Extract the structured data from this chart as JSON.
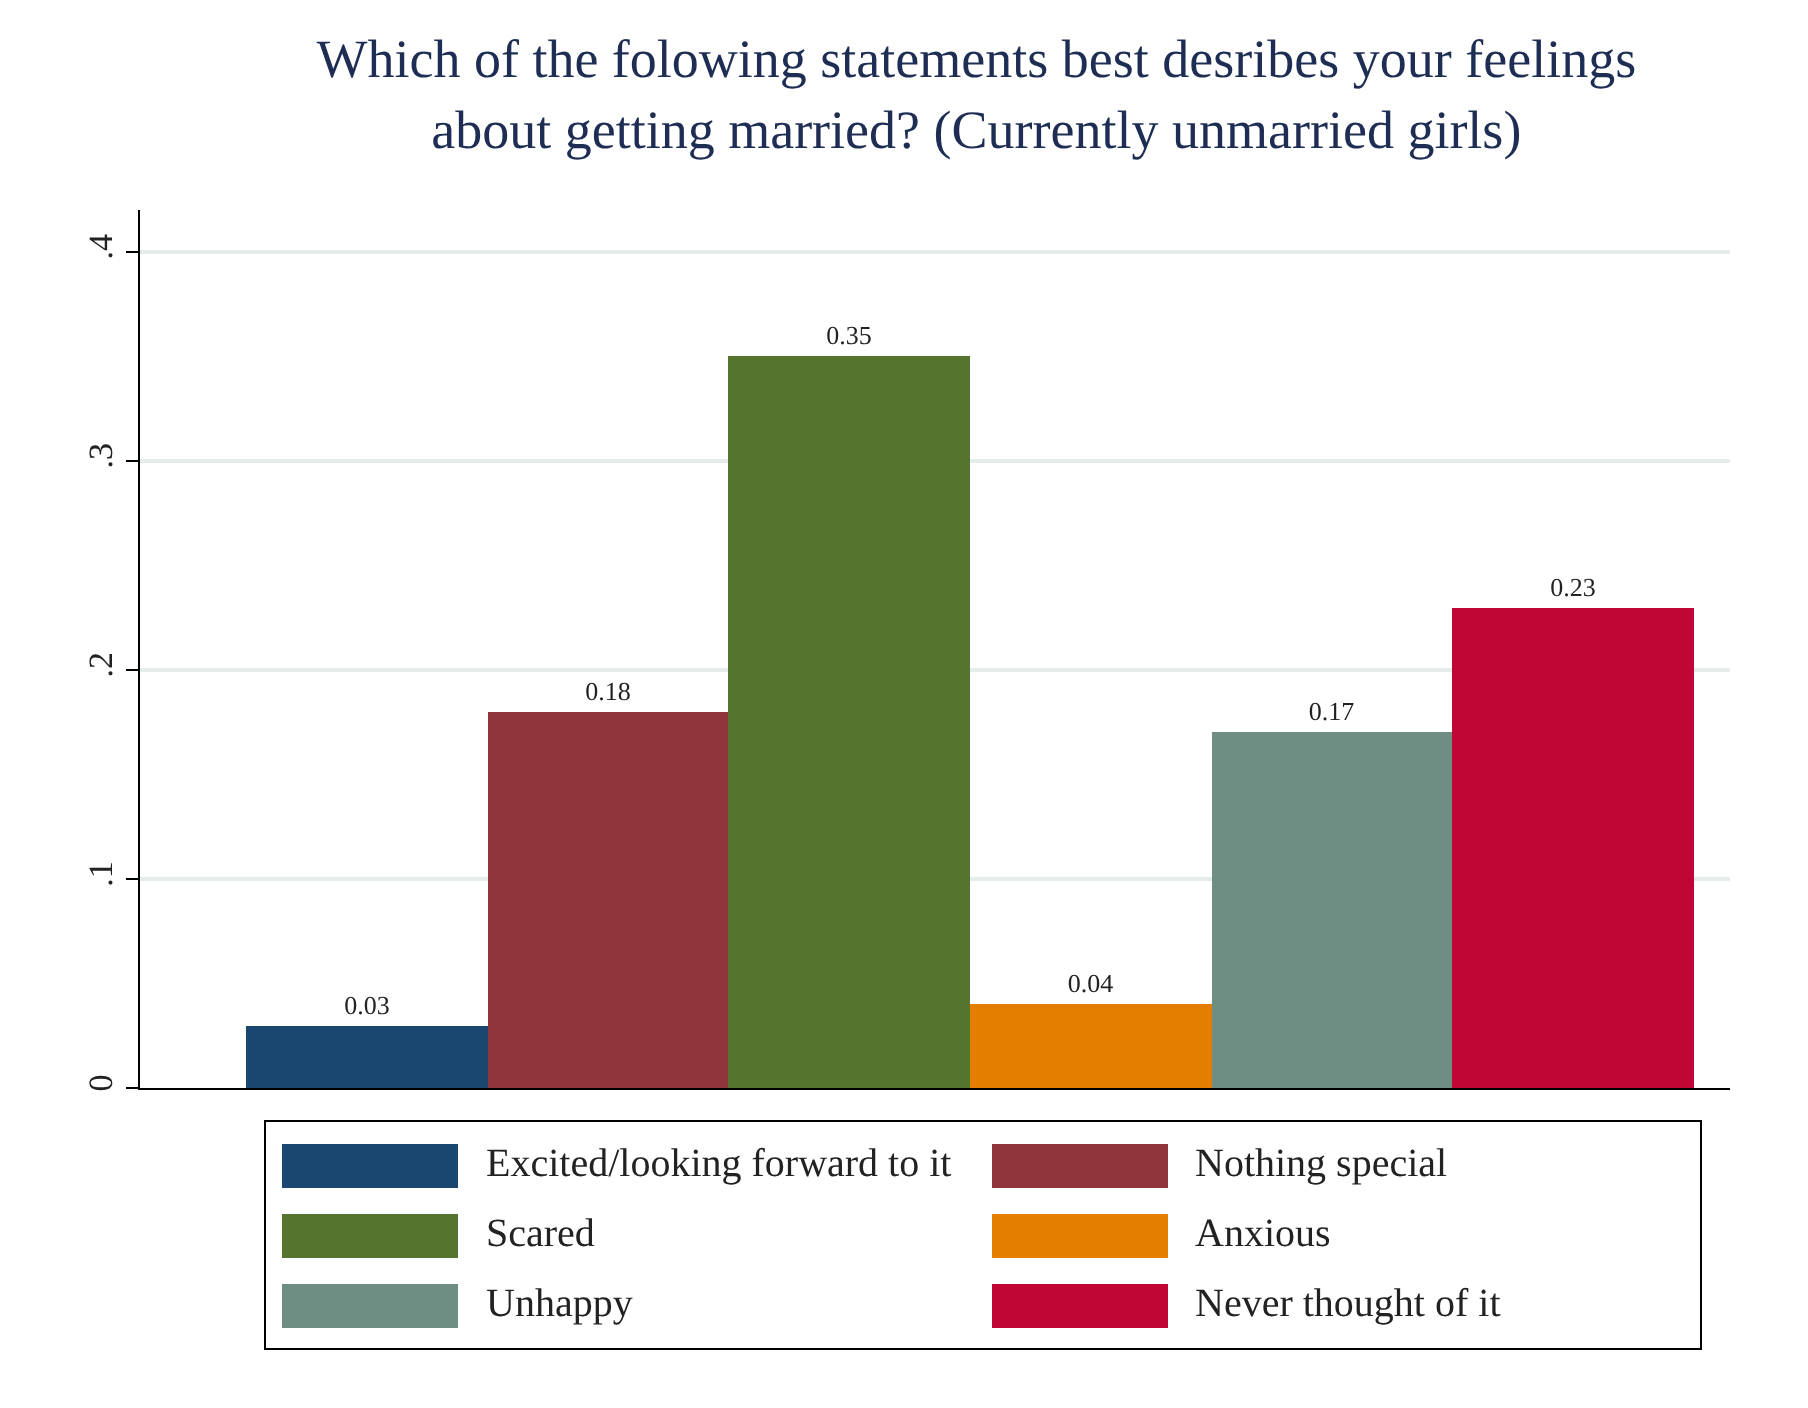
{
  "chart_data": {
    "type": "bar",
    "title": "Which of the folowing statements best desribes your feelings\nabout getting married? (Currently unmarried girls)",
    "categories": [
      null,
      null,
      null,
      null,
      null,
      null
    ],
    "series": [
      {
        "name": "Excited/looking forward to it",
        "color": "#1a476f",
        "values": [
          0.03,
          null,
          null,
          null,
          null,
          null
        ]
      },
      {
        "name": "Nothing special",
        "color": "#90353b",
        "values": [
          null,
          0.18,
          null,
          null,
          null,
          null
        ]
      },
      {
        "name": "Scared",
        "color": "#55752f",
        "values": [
          null,
          null,
          0.35,
          null,
          null,
          null
        ]
      },
      {
        "name": "Anxious",
        "color": "#e37e00",
        "values": [
          null,
          null,
          null,
          0.04,
          null,
          null
        ]
      },
      {
        "name": "Unhappy",
        "color": "#6e8e84",
        "values": [
          null,
          null,
          null,
          null,
          0.17,
          null
        ]
      },
      {
        "name": "Never thought of it",
        "color": "#c10534",
        "values": [
          null,
          null,
          null,
          null,
          null,
          0.23
        ]
      }
    ],
    "ylim": [
      0,
      0.42
    ],
    "yticks": [
      0,
      {
        "value": 0.1,
        "label": ".1"
      },
      {
        "value": 0.2,
        "label": ".2"
      },
      {
        "value": 0.3,
        "label": ".3"
      },
      {
        "value": 0.4,
        "label": ".4"
      }
    ],
    "grid": "y",
    "data_labels": true,
    "legend": "bottom",
    "tick_labels": "y"
  }
}
